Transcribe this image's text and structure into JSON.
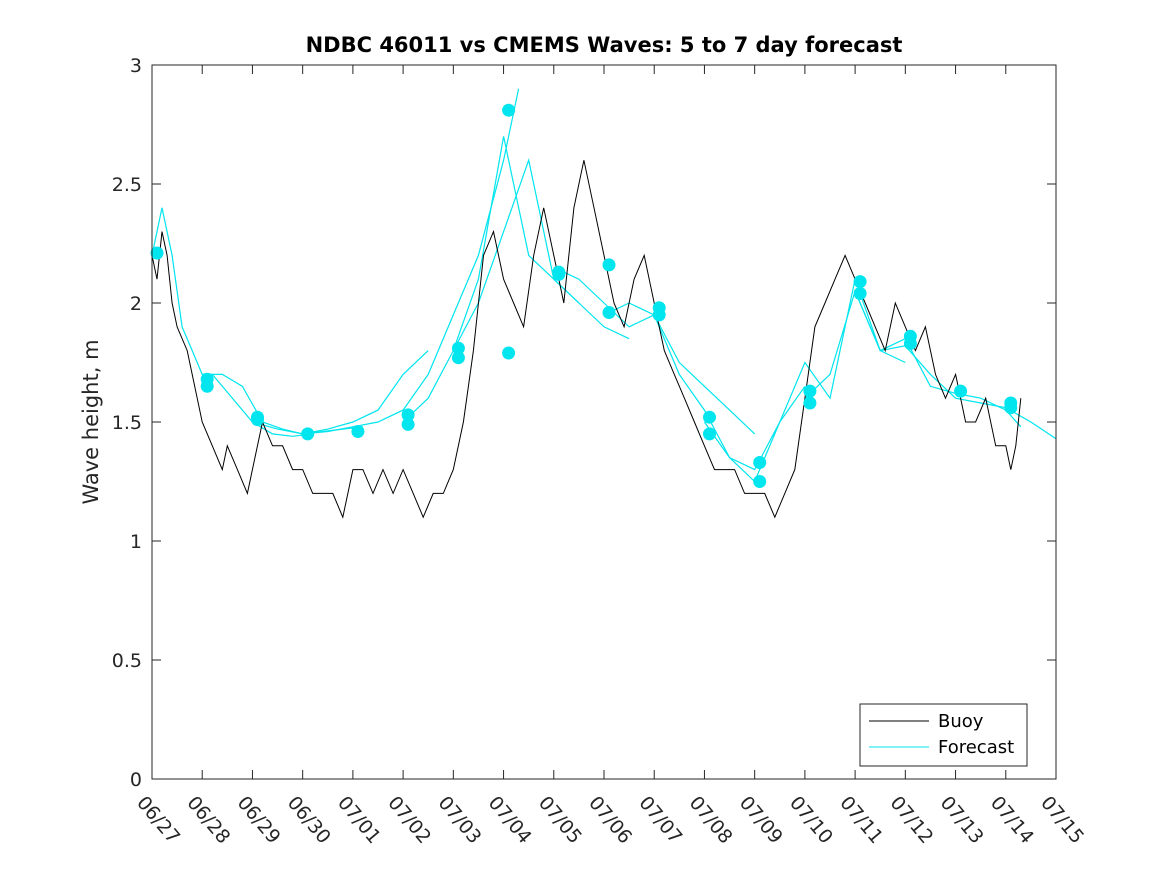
{
  "chart_data": {
    "type": "line",
    "title": "NDBC 46011 vs CMEMS Waves: 5 to 7 day forecast",
    "xlabel": "",
    "ylabel": "Wave height, m",
    "xlim": [
      "06/27",
      "07/15"
    ],
    "ylim": [
      0,
      3
    ],
    "y_ticks": [
      "0",
      "0.5",
      "1",
      "1.5",
      "2",
      "2.5",
      "3"
    ],
    "x_ticks": [
      "06/27",
      "06/28",
      "06/29",
      "06/30",
      "07/01",
      "07/02",
      "07/03",
      "07/04",
      "07/05",
      "07/06",
      "07/07",
      "07/08",
      "07/09",
      "07/10",
      "07/11",
      "07/12",
      "07/13",
      "07/14",
      "07/15"
    ],
    "grid": false,
    "legend": {
      "position": "bottom-right",
      "entries": [
        "Buoy",
        "Forecast"
      ]
    },
    "colors": {
      "buoy": "#000000",
      "forecast": "#00e5ee"
    },
    "series": [
      {
        "name": "Buoy",
        "x_day_offsets_from_06_27": [
          0,
          0.1,
          0.2,
          0.3,
          0.4,
          0.5,
          0.7,
          0.9,
          1.0,
          1.2,
          1.4,
          1.5,
          1.7,
          1.9,
          2.0,
          2.2,
          2.4,
          2.6,
          2.8,
          3.0,
          3.2,
          3.4,
          3.6,
          3.8,
          4.0,
          4.2,
          4.4,
          4.6,
          4.8,
          5.0,
          5.2,
          5.4,
          5.6,
          5.8,
          6.0,
          6.2,
          6.4,
          6.6,
          6.8,
          7.0,
          7.2,
          7.4,
          7.6,
          7.8,
          8.0,
          8.2,
          8.4,
          8.6,
          8.8,
          9.0,
          9.2,
          9.4,
          9.6,
          9.8,
          10.0,
          10.2,
          10.4,
          10.6,
          10.8,
          11.0,
          11.2,
          11.4,
          11.6,
          11.8,
          12.0,
          12.2,
          12.4,
          12.6,
          12.8,
          13.0,
          13.2,
          13.4,
          13.6,
          13.8,
          14.0,
          14.2,
          14.4,
          14.6,
          14.8,
          15.0,
          15.2,
          15.4,
          15.6,
          15.8,
          16.0,
          16.2,
          16.4,
          16.6,
          16.8,
          17.0,
          17.1,
          17.2,
          17.3
        ],
        "values": [
          2.2,
          2.1,
          2.3,
          2.2,
          2.0,
          1.9,
          1.8,
          1.6,
          1.5,
          1.4,
          1.3,
          1.4,
          1.3,
          1.2,
          1.3,
          1.5,
          1.4,
          1.4,
          1.3,
          1.3,
          1.2,
          1.2,
          1.2,
          1.1,
          1.3,
          1.3,
          1.2,
          1.3,
          1.2,
          1.3,
          1.2,
          1.1,
          1.2,
          1.2,
          1.3,
          1.5,
          1.8,
          2.2,
          2.3,
          2.1,
          2.0,
          1.9,
          2.2,
          2.4,
          2.2,
          2.0,
          2.4,
          2.6,
          2.4,
          2.2,
          2.0,
          1.9,
          2.1,
          2.2,
          2.0,
          1.8,
          1.7,
          1.6,
          1.5,
          1.4,
          1.3,
          1.3,
          1.3,
          1.2,
          1.2,
          1.2,
          1.1,
          1.2,
          1.3,
          1.6,
          1.9,
          2.0,
          2.1,
          2.2,
          2.1,
          2.0,
          1.9,
          1.8,
          2.0,
          1.9,
          1.8,
          1.9,
          1.7,
          1.6,
          1.7,
          1.5,
          1.5,
          1.6,
          1.4,
          1.4,
          1.3,
          1.4,
          1.6
        ]
      },
      {
        "name": "Forecast",
        "runs": [
          {
            "x": [
              0,
              0.2,
              0.4,
              0.6,
              0.8,
              1.0,
              1.2,
              1.6,
              2.0,
              2.4,
              2.8,
              3.2
            ],
            "values": [
              2.2,
              2.4,
              2.2,
              1.9,
              1.8,
              1.7,
              1.7,
              1.6,
              1.5,
              1.45,
              1.44,
              1.45
            ]
          },
          {
            "x": [
              1.0,
              1.4,
              1.8,
              2.2,
              2.6,
              3.0,
              3.4,
              3.8,
              4.2
            ],
            "values": [
              1.7,
              1.7,
              1.65,
              1.5,
              1.47,
              1.45,
              1.46,
              1.47,
              1.48
            ]
          },
          {
            "x": [
              2.0,
              2.5,
              3.0,
              3.5,
              4.0,
              4.5,
              5.0,
              5.5
            ],
            "values": [
              1.5,
              1.47,
              1.45,
              1.47,
              1.5,
              1.55,
              1.7,
              1.8
            ]
          },
          {
            "x": [
              3.0,
              3.5,
              4.0,
              4.5,
              5.0,
              5.5,
              6.0,
              6.5,
              7.0,
              7.2,
              7.3
            ],
            "values": [
              1.45,
              1.46,
              1.48,
              1.5,
              1.55,
              1.7,
              1.95,
              2.2,
              2.6,
              2.8,
              2.9
            ]
          },
          {
            "x": [
              5.0,
              5.5,
              6.0,
              6.5,
              7.0,
              7.5,
              8.0,
              8.5
            ],
            "values": [
              1.5,
              1.6,
              1.8,
              2.0,
              2.3,
              2.6,
              2.1,
              2.0
            ]
          },
          {
            "x": [
              6.0,
              6.5,
              7.0,
              7.5,
              8.0,
              8.5,
              9.0,
              9.5
            ],
            "values": [
              1.8,
              2.1,
              2.7,
              2.2,
              2.1,
              2.0,
              1.9,
              1.85
            ]
          },
          {
            "x": [
              8.0,
              8.5,
              9.0,
              9.5,
              10.0,
              10.5,
              11.0,
              11.5,
              12.0
            ],
            "values": [
              2.15,
              2.1,
              2.0,
              1.9,
              1.95,
              1.75,
              1.65,
              1.55,
              1.45
            ]
          },
          {
            "x": [
              9.0,
              9.5,
              10.0,
              10.5,
              11.0,
              11.5,
              12.0,
              12.5,
              13.0
            ],
            "values": [
              1.95,
              2.0,
              1.95,
              1.7,
              1.55,
              1.35,
              1.3,
              1.5,
              1.65
            ]
          },
          {
            "x": [
              11.0,
              11.5,
              12.0,
              12.5,
              13.0,
              13.5,
              14.0,
              14.5,
              15.0
            ],
            "values": [
              1.5,
              1.35,
              1.25,
              1.5,
              1.75,
              1.6,
              2.1,
              1.8,
              1.75
            ]
          },
          {
            "x": [
              13.0,
              13.5,
              14.0,
              14.5,
              15.0,
              15.5,
              16.0,
              16.5,
              17.0,
              17.3
            ],
            "values": [
              1.6,
              1.7,
              2.05,
              1.8,
              1.85,
              1.65,
              1.62,
              1.6,
              1.55,
              1.48
            ]
          },
          {
            "x": [
              14.0,
              14.5,
              15.0,
              15.5,
              16.0,
              16.5,
              17.0,
              17.5,
              18.0
            ],
            "values": [
              2.05,
              1.8,
              1.82,
              1.7,
              1.6,
              1.58,
              1.56,
              1.5,
              1.43
            ]
          }
        ],
        "markers": {
          "x": [
            0.1,
            1.1,
            1.1,
            2.1,
            2.1,
            3.1,
            4.1,
            5.1,
            5.1,
            6.1,
            6.1,
            7.1,
            7.1,
            8.1,
            8.1,
            9.1,
            9.1,
            10.1,
            10.1,
            11.1,
            11.1,
            12.1,
            12.1,
            13.1,
            13.1,
            14.1,
            14.1,
            15.1,
            15.1,
            16.1,
            17.1,
            17.1
          ],
          "values": [
            2.21,
            1.68,
            1.65,
            1.52,
            1.51,
            1.45,
            1.46,
            1.53,
            1.49,
            1.81,
            1.77,
            2.81,
            1.79,
            2.13,
            2.12,
            2.16,
            1.96,
            1.98,
            1.95,
            1.52,
            1.45,
            1.33,
            1.25,
            1.63,
            1.58,
            2.09,
            2.04,
            1.86,
            1.83,
            1.63,
            1.58,
            1.56
          ]
        }
      }
    ]
  }
}
